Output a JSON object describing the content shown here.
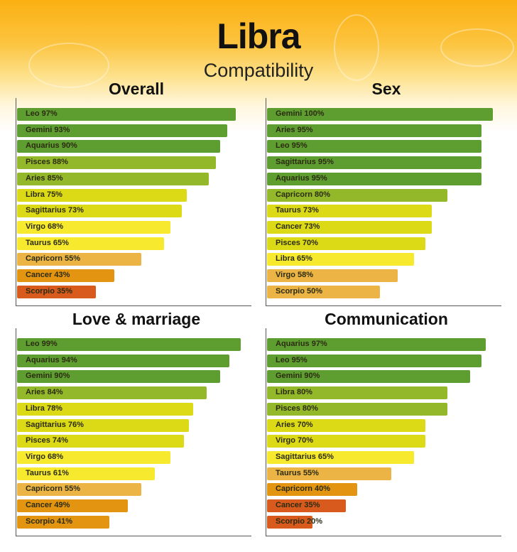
{
  "header": {
    "title": "Libra",
    "subtitle": "Compatibility"
  },
  "color_bands": [
    {
      "min": 90,
      "color": "#5e9e30"
    },
    {
      "min": 80,
      "color": "#93b82a"
    },
    {
      "min": 70,
      "color": "#dcd916"
    },
    {
      "min": 60,
      "color": "#f7ea2e"
    },
    {
      "min": 50,
      "color": "#ebb444"
    },
    {
      "min": 40,
      "color": "#e39410"
    },
    {
      "min": 0,
      "color": "#d85a1c"
    }
  ],
  "chart_data": [
    {
      "type": "bar",
      "orientation": "horizontal",
      "title": "Overall",
      "xlim": [
        0,
        100
      ],
      "categories": [
        "Leo",
        "Gemini",
        "Aquarius",
        "Pisces",
        "Aries",
        "Libra",
        "Sagittarius",
        "Virgo",
        "Taurus",
        "Capricorn",
        "Cancer",
        "Scorpio"
      ],
      "values": [
        97,
        93,
        90,
        88,
        85,
        75,
        73,
        68,
        65,
        55,
        43,
        35
      ]
    },
    {
      "type": "bar",
      "orientation": "horizontal",
      "title": "Sex",
      "xlim": [
        0,
        100
      ],
      "categories": [
        "Gemini",
        "Aries",
        "Leo",
        "Sagittarius",
        "Aquarius",
        "Capricorn",
        "Taurus",
        "Cancer",
        "Pisces",
        "Libra",
        "Virgo",
        "Scorpio"
      ],
      "values": [
        100,
        95,
        95,
        95,
        95,
        80,
        73,
        73,
        70,
        65,
        58,
        50
      ]
    },
    {
      "type": "bar",
      "orientation": "horizontal",
      "title": "Love & marriage",
      "xlim": [
        0,
        100
      ],
      "categories": [
        "Leo",
        "Aquarius",
        "Gemini",
        "Aries",
        "Libra",
        "Sagittarius",
        "Pisces",
        "Virgo",
        "Taurus",
        "Capricorn",
        "Cancer",
        "Scorpio"
      ],
      "values": [
        99,
        94,
        90,
        84,
        78,
        76,
        74,
        68,
        61,
        55,
        49,
        41
      ]
    },
    {
      "type": "bar",
      "orientation": "horizontal",
      "title": "Communication",
      "xlim": [
        0,
        100
      ],
      "categories": [
        "Aquarius",
        "Leo",
        "Gemini",
        "Libra",
        "Pisces",
        "Aries",
        "Virgo",
        "Sagittarius",
        "Taurus",
        "Capricorn",
        "Cancer",
        "Scorpio"
      ],
      "values": [
        97,
        95,
        90,
        80,
        80,
        70,
        70,
        65,
        55,
        40,
        35,
        20
      ]
    }
  ]
}
